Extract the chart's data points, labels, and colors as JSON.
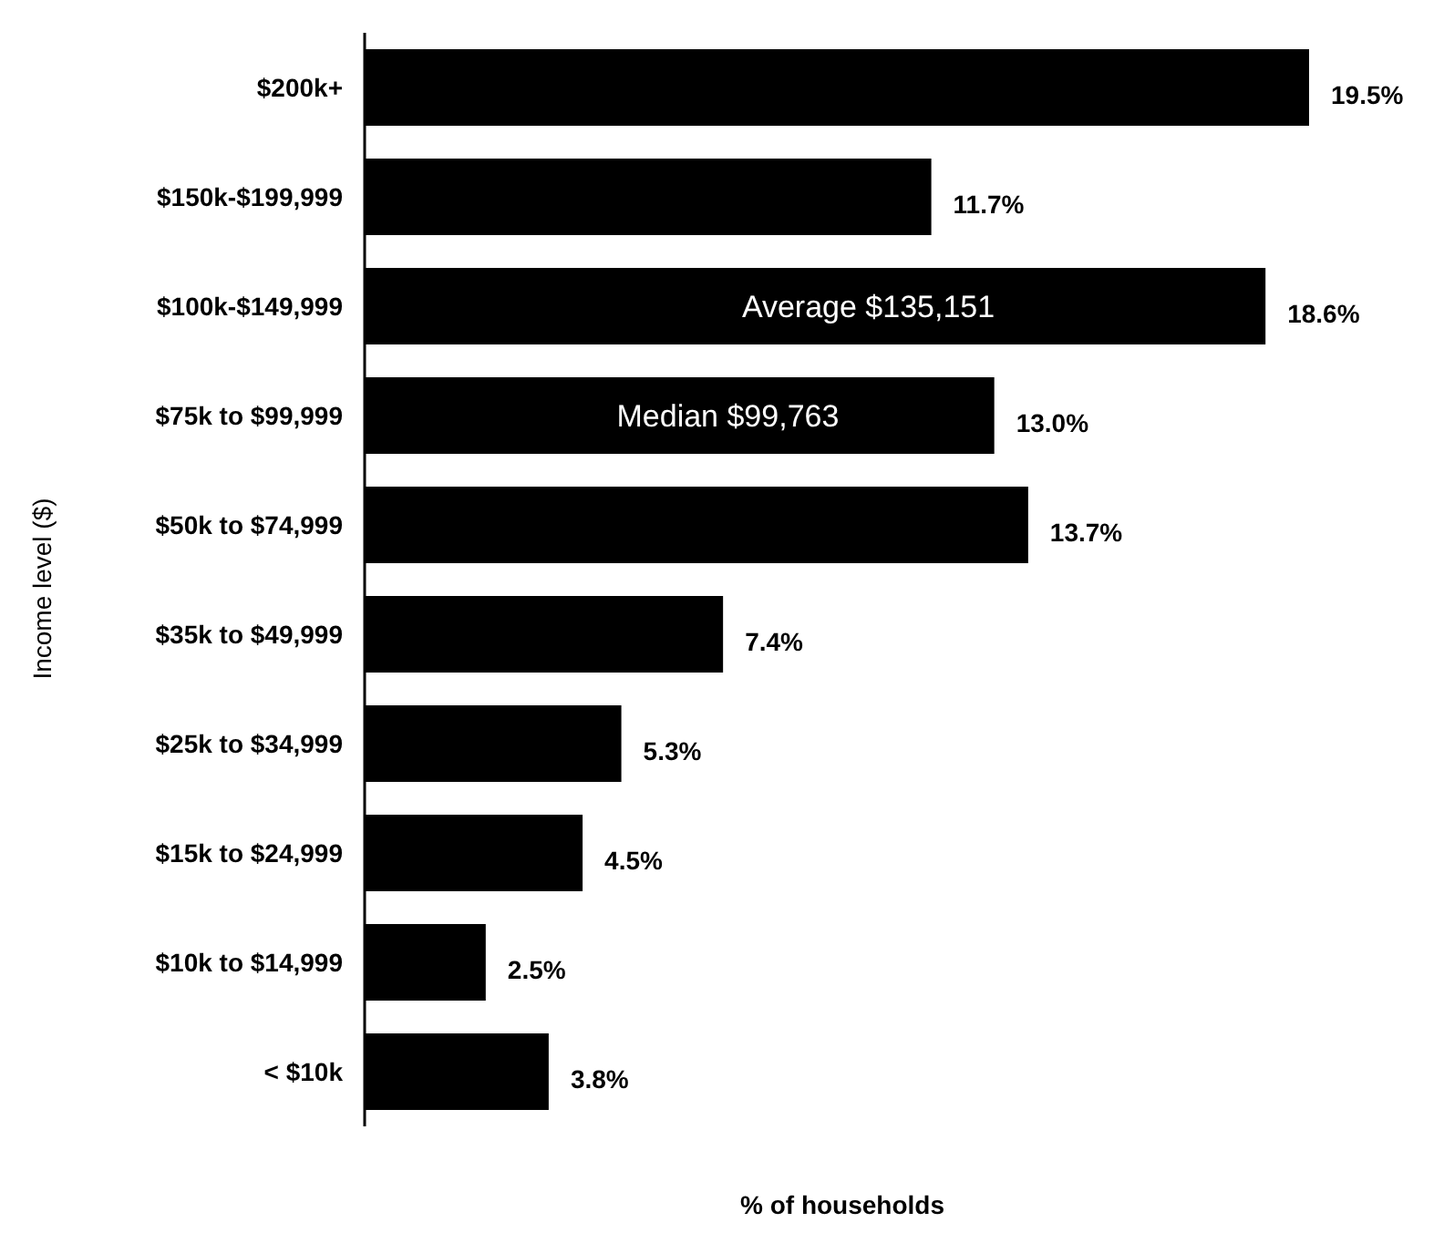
{
  "chart_data": {
    "type": "bar",
    "orientation": "horizontal",
    "xlabel": "% of households",
    "ylabel": "Income level ($)",
    "categories": [
      "$200k+",
      "$150k-$199,999",
      "$100k-$149,999",
      "$75k to $99,999",
      "$50k to $74,999",
      "$35k to $49,999",
      "$25k to $34,999",
      "$15k to $24,999",
      "$10k to $14,999",
      "< $10k"
    ],
    "values": [
      19.5,
      11.7,
      18.6,
      13.0,
      13.7,
      7.4,
      5.3,
      4.5,
      2.5,
      3.8
    ],
    "value_labels": [
      "19.5%",
      "11.7%",
      "18.6%",
      "13.0%",
      "13.7%",
      "7.4%",
      "5.3%",
      "4.5%",
      "2.5%",
      "3.8%"
    ],
    "color": "#000000",
    "annotations": [
      {
        "text": "Average $135,151",
        "x": 10.4,
        "y": "$100k-$149,999"
      },
      {
        "text": "Median $99,763",
        "x": 7.5,
        "y": "$75k to $99,999"
      }
    ]
  }
}
